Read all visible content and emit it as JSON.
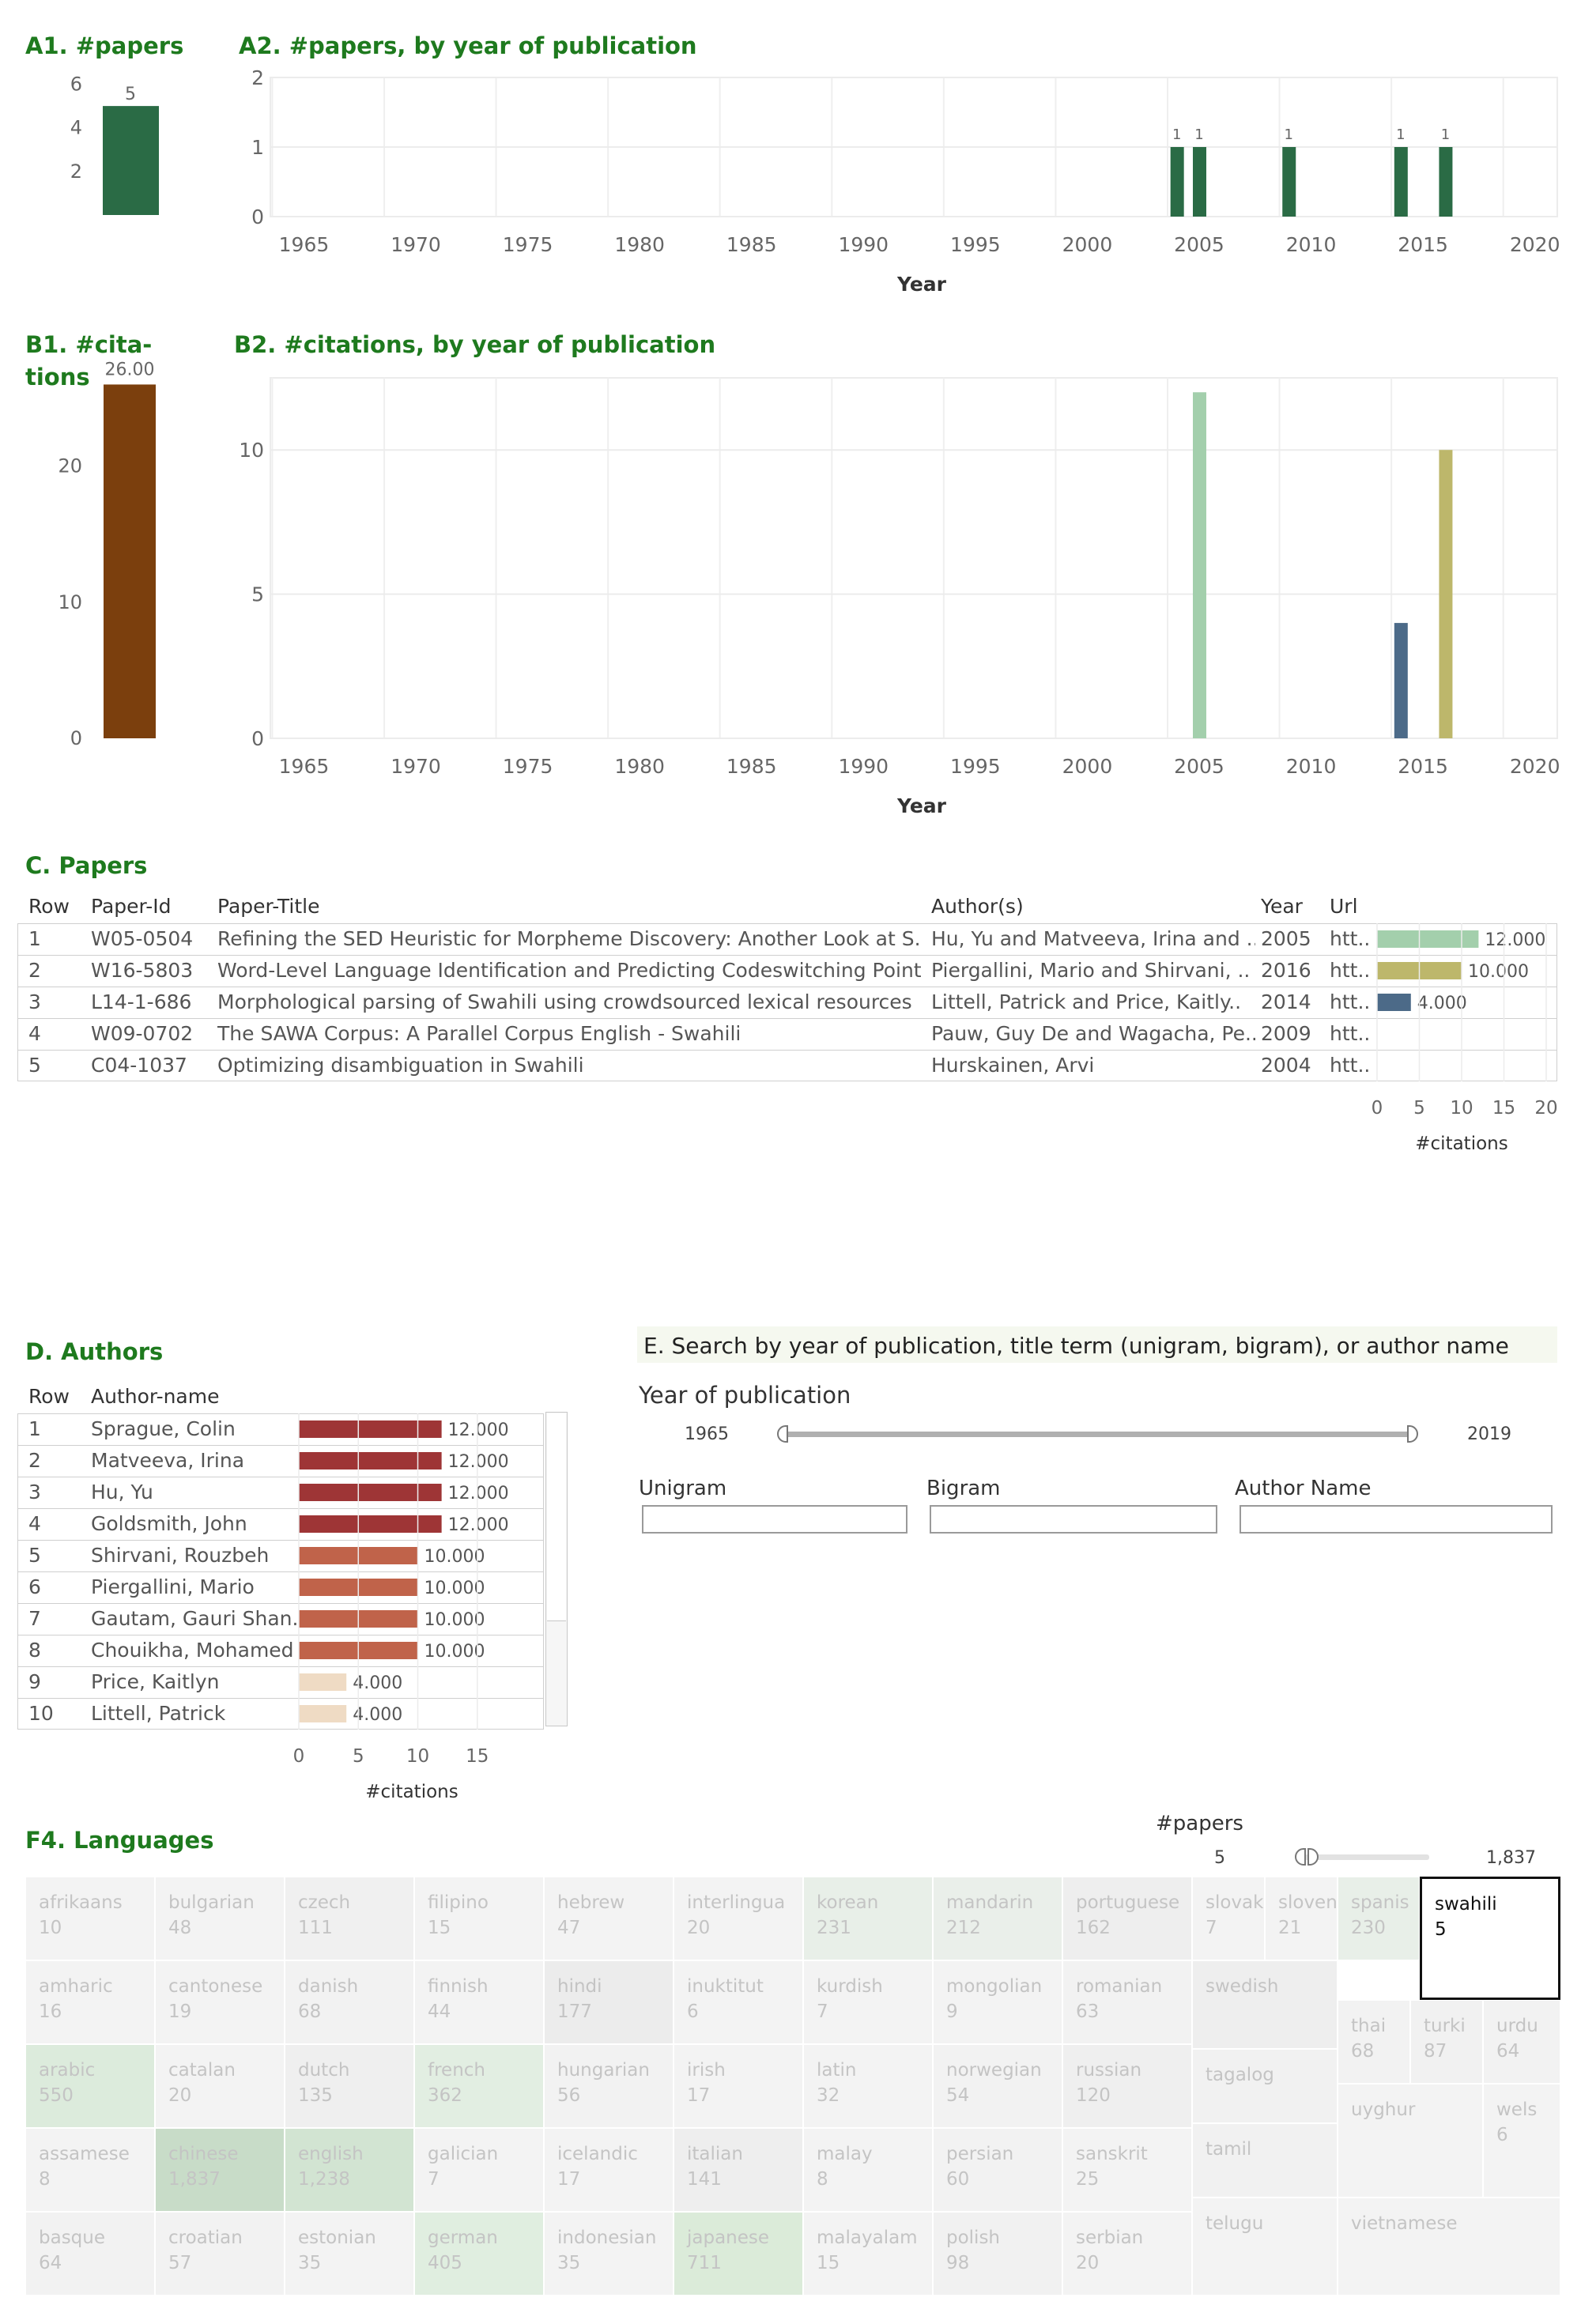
{
  "titles": {
    "a1": "A1. #papers",
    "a2": "A2. #papers, by year of publication",
    "b1": "B1. #cita-\ntions",
    "b2": "B2. #citations, by year of publication",
    "c": "C. Papers",
    "d": "D. Authors",
    "e": "E. Search by year of publication, title term (unigram, bigram), or  author name",
    "f4": "F4. Languages"
  },
  "colors": {
    "dark_green": "#2a6b45",
    "brown": "#7b3f0d",
    "light_green": "#a3cfac",
    "olive": "#bdb76b",
    "slate": "#4c6a88",
    "author_red": "#9e3536",
    "author_orange": "#c0634a",
    "author_tan": "#efdbc4"
  },
  "chart_data": [
    {
      "id": "A1",
      "type": "bar",
      "title": "A1. #papers",
      "categories": [
        ""
      ],
      "values": [
        5
      ],
      "data_labels": [
        "5"
      ],
      "ylim": [
        0,
        6.6
      ],
      "yticks": [
        2,
        4,
        6
      ]
    },
    {
      "id": "A2",
      "type": "bar",
      "title": "A2. #papers, by year of publication",
      "xlabel": "Year",
      "x": [
        2004,
        2005,
        2009,
        2014,
        2016
      ],
      "values": [
        1,
        1,
        1,
        1,
        1
      ],
      "data_labels": [
        "1",
        "1",
        "1",
        "1",
        "1"
      ],
      "xlim": [
        1963.5,
        2021
      ],
      "ylim": [
        0,
        2
      ],
      "xticks": [
        1965,
        1970,
        1975,
        1980,
        1985,
        1990,
        1995,
        2000,
        2005,
        2010,
        2015,
        2020
      ],
      "yticks": [
        0,
        1,
        2
      ],
      "grid": true
    },
    {
      "id": "B1",
      "type": "bar",
      "title": "B1. #cita-\ntions",
      "categories": [
        ""
      ],
      "values": [
        26
      ],
      "data_labels": [
        "26.00"
      ],
      "ylim": [
        0,
        28
      ],
      "yticks": [
        0,
        10,
        20
      ]
    },
    {
      "id": "B2",
      "type": "bar",
      "title": "B2. #citations, by year of publication",
      "xlabel": "Year",
      "x": [
        2005,
        2014,
        2016
      ],
      "values": [
        12,
        4,
        10
      ],
      "colors": [
        "#a3cfac",
        "#4c6a88",
        "#bdb76b"
      ],
      "xlim": [
        1963.5,
        2021
      ],
      "ylim": [
        0,
        12.5
      ],
      "xticks": [
        1965,
        1970,
        1975,
        1980,
        1985,
        1990,
        1995,
        2000,
        2005,
        2010,
        2015,
        2020
      ],
      "yticks": [
        0,
        5,
        10
      ],
      "grid": true
    },
    {
      "id": "C",
      "type": "table",
      "title": "C. Papers",
      "columns": [
        "Row",
        "Paper-Id",
        "Paper-Title",
        "Author(s)",
        "Year",
        "Url"
      ],
      "rows": [
        [
          "1",
          "W05-0504",
          "Refining the SED Heuristic for Morpheme Discovery: Another Look at S..",
          "Hu, Yu and Matveeva, Irina and ..",
          "2005",
          "htt.."
        ],
        [
          "2",
          "W16-5803",
          "Word-Level Language Identification and Predicting Codeswitching Point..",
          "Piergallini, Mario and Shirvani, ..",
          "2016",
          "htt.."
        ],
        [
          "3",
          "L14-1-686",
          "Morphological parsing of Swahili using crowdsourced lexical resources",
          "Littell, Patrick and Price, Kaitly..",
          "2014",
          "htt.."
        ],
        [
          "4",
          "W09-0702",
          "The SAWA Corpus: A Parallel Corpus English - Swahili",
          "Pauw, Guy De and Wagacha, Pe..",
          "2009",
          "htt.."
        ],
        [
          "5",
          "C04-1037",
          "Optimizing disambiguation in Swahili",
          "Hurskainen, Arvi",
          "2004",
          "htt.."
        ]
      ],
      "citations": [
        12,
        10,
        4,
        null,
        null
      ],
      "citation_labels": [
        "12.000",
        "10.000",
        "4.000",
        "",
        ""
      ],
      "bar_colors": [
        "#a3cfac",
        "#bdb76b",
        "#4c6a88",
        "",
        ""
      ],
      "xlabel": "#citations",
      "xlim": [
        0,
        20
      ],
      "xticks": [
        0,
        5,
        10,
        15,
        20
      ]
    },
    {
      "id": "D",
      "type": "table",
      "title": "D. Authors",
      "columns": [
        "Row",
        "Author-name"
      ],
      "rows": [
        [
          "1",
          "Sprague, Colin"
        ],
        [
          "2",
          "Matveeva, Irina"
        ],
        [
          "3",
          "Hu, Yu"
        ],
        [
          "4",
          "Goldsmith, John"
        ],
        [
          "5",
          "Shirvani, Rouzbeh"
        ],
        [
          "6",
          "Piergallini, Mario"
        ],
        [
          "7",
          "Gautam, Gauri Shan.."
        ],
        [
          "8",
          "Chouikha, Mohamed"
        ],
        [
          "9",
          "Price, Kaitlyn"
        ],
        [
          "10",
          "Littell, Patrick"
        ]
      ],
      "citations": [
        12,
        12,
        12,
        12,
        10,
        10,
        10,
        10,
        4,
        4
      ],
      "citation_labels": [
        "12.000",
        "12.000",
        "12.000",
        "12.000",
        "10.000",
        "10.000",
        "10.000",
        "10.000",
        "4.000",
        "4.000"
      ],
      "bar_colors": [
        "#9e3536",
        "#9e3536",
        "#9e3536",
        "#9e3536",
        "#c0634a",
        "#c0634a",
        "#c0634a",
        "#c0634a",
        "#efdbc4",
        "#efdbc4"
      ],
      "xlabel": "#citations",
      "xlim": [
        0,
        19
      ],
      "xticks": [
        0,
        5,
        10,
        15
      ]
    },
    {
      "id": "F4",
      "type": "heatmap",
      "title": "F4. Languages",
      "legend_title": "#papers",
      "range_labels": [
        "5",
        "1,837"
      ],
      "cells": [
        {
          "name": "afrikaans",
          "value": "10",
          "bg": "#f3f3f3"
        },
        {
          "name": "bulgarian",
          "value": "48",
          "bg": "#f3f3f3"
        },
        {
          "name": "czech",
          "value": "111",
          "bg": "#f0f0f0"
        },
        {
          "name": "filipino",
          "value": "15",
          "bg": "#f3f3f3"
        },
        {
          "name": "hebrew",
          "value": "47",
          "bg": "#f3f3f3"
        },
        {
          "name": "interlingua",
          "value": "20",
          "bg": "#f3f3f3"
        },
        {
          "name": "korean",
          "value": "231",
          "bg": "#e8efe8"
        },
        {
          "name": "mandarin",
          "value": "212",
          "bg": "#eaefea"
        },
        {
          "name": "portuguese",
          "value": "162",
          "bg": "#eeeeee"
        },
        {
          "name": "slovak",
          "value": "7",
          "bg": "#f3f3f3"
        },
        {
          "name": "sloven",
          "value": "21",
          "bg": "#f3f3f3"
        },
        {
          "name": "spanis",
          "value": "230",
          "bg": "#e8efe8"
        },
        {
          "name": "swahili",
          "value": "5",
          "bg": "#ffffff",
          "selected": true
        },
        {
          "name": "amharic",
          "value": "16",
          "bg": "#f3f3f3"
        },
        {
          "name": "cantonese",
          "value": "19",
          "bg": "#f3f3f3"
        },
        {
          "name": "danish",
          "value": "68",
          "bg": "#f2f2f2"
        },
        {
          "name": "finnish",
          "value": "44",
          "bg": "#f3f3f3"
        },
        {
          "name": "hindi",
          "value": "177",
          "bg": "#ececec"
        },
        {
          "name": "inuktitut",
          "value": "6",
          "bg": "#f3f3f3"
        },
        {
          "name": "kurdish",
          "value": "7",
          "bg": "#f3f3f3"
        },
        {
          "name": "mongolian",
          "value": "9",
          "bg": "#f3f3f3"
        },
        {
          "name": "romanian",
          "value": "63",
          "bg": "#f2f2f2"
        },
        {
          "name": "swedish",
          "value": "",
          "bg": "#eeeeee"
        },
        {
          "name": "thai",
          "value": "68",
          "bg": "#f2f2f2"
        },
        {
          "name": "turki",
          "value": "87",
          "bg": "#f1f1f1"
        },
        {
          "name": "urdu",
          "value": "64",
          "bg": "#f2f2f2"
        },
        {
          "name": "arabic",
          "value": "550",
          "bg": "#dcebdc"
        },
        {
          "name": "catalan",
          "value": "20",
          "bg": "#f3f3f3"
        },
        {
          "name": "dutch",
          "value": "135",
          "bg": "#efefef"
        },
        {
          "name": "french",
          "value": "362",
          "bg": "#e2eee2"
        },
        {
          "name": "hungarian",
          "value": "56",
          "bg": "#f2f2f2"
        },
        {
          "name": "irish",
          "value": "17",
          "bg": "#f3f3f3"
        },
        {
          "name": "latin",
          "value": "32",
          "bg": "#f3f3f3"
        },
        {
          "name": "norwegian",
          "value": "54",
          "bg": "#f2f2f2"
        },
        {
          "name": "russian",
          "value": "120",
          "bg": "#efefef"
        },
        {
          "name": "tagalog",
          "value": "",
          "bg": "#f1f1f1"
        },
        {
          "name": "assamese",
          "value": "8",
          "bg": "#f3f3f3"
        },
        {
          "name": "chinese",
          "value": "1,837",
          "bg": "#c8dcc8"
        },
        {
          "name": "english",
          "value": "1,238",
          "bg": "#d2e4d2"
        },
        {
          "name": "galician",
          "value": "7",
          "bg": "#f3f3f3"
        },
        {
          "name": "icelandic",
          "value": "17",
          "bg": "#f3f3f3"
        },
        {
          "name": "italian",
          "value": "141",
          "bg": "#eeeeee"
        },
        {
          "name": "malay",
          "value": "8",
          "bg": "#f3f3f3"
        },
        {
          "name": "persian",
          "value": "60",
          "bg": "#f2f2f2"
        },
        {
          "name": "sanskrit",
          "value": "25",
          "bg": "#f3f3f3"
        },
        {
          "name": "tamil",
          "value": "",
          "bg": "#f1f1f1"
        },
        {
          "name": "uyghur",
          "value": "",
          "bg": "#f3f3f3"
        },
        {
          "name": "wels",
          "value": "6",
          "bg": "#f3f3f3"
        },
        {
          "name": "basque",
          "value": "64",
          "bg": "#f2f2f2"
        },
        {
          "name": "croatian",
          "value": "57",
          "bg": "#f2f2f2"
        },
        {
          "name": "estonian",
          "value": "35",
          "bg": "#f3f3f3"
        },
        {
          "name": "german",
          "value": "405",
          "bg": "#e0eee0"
        },
        {
          "name": "indonesian",
          "value": "35",
          "bg": "#f3f3f3"
        },
        {
          "name": "japanese",
          "value": "711",
          "bg": "#dbebd9"
        },
        {
          "name": "malayalam",
          "value": "15",
          "bg": "#f3f3f3"
        },
        {
          "name": "polish",
          "value": "98",
          "bg": "#f1f1f1"
        },
        {
          "name": "serbian",
          "value": "20",
          "bg": "#f3f3f3"
        },
        {
          "name": "telugu",
          "value": "",
          "bg": "#f3f3f3"
        },
        {
          "name": "vietnamese",
          "value": "",
          "bg": "#f3f3f3"
        }
      ]
    }
  ],
  "search": {
    "year_label": "Year of publication",
    "year_min": "1965",
    "year_max": "2019",
    "unigram_label": "Unigram",
    "bigram_label": "Bigram",
    "author_label": "Author Name",
    "unigram_value": "",
    "bigram_value": "",
    "author_value": ""
  }
}
